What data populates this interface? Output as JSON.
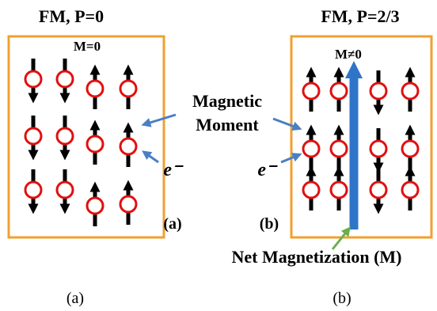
{
  "panels": [
    {
      "title": "FM,   P=0",
      "magnetization": "M=0",
      "label": "(a)",
      "electron": "e⁻"
    },
    {
      "title": "FM,   P=2/3",
      "magnetization": "M≠0",
      "label": "(b)",
      "electron": "e⁻"
    }
  ],
  "moment_label": [
    "Magnetic",
    "Moment"
  ],
  "net_label": "Net Magnetization (M)",
  "captions": [
    "(a)",
    "(b)"
  ]
}
